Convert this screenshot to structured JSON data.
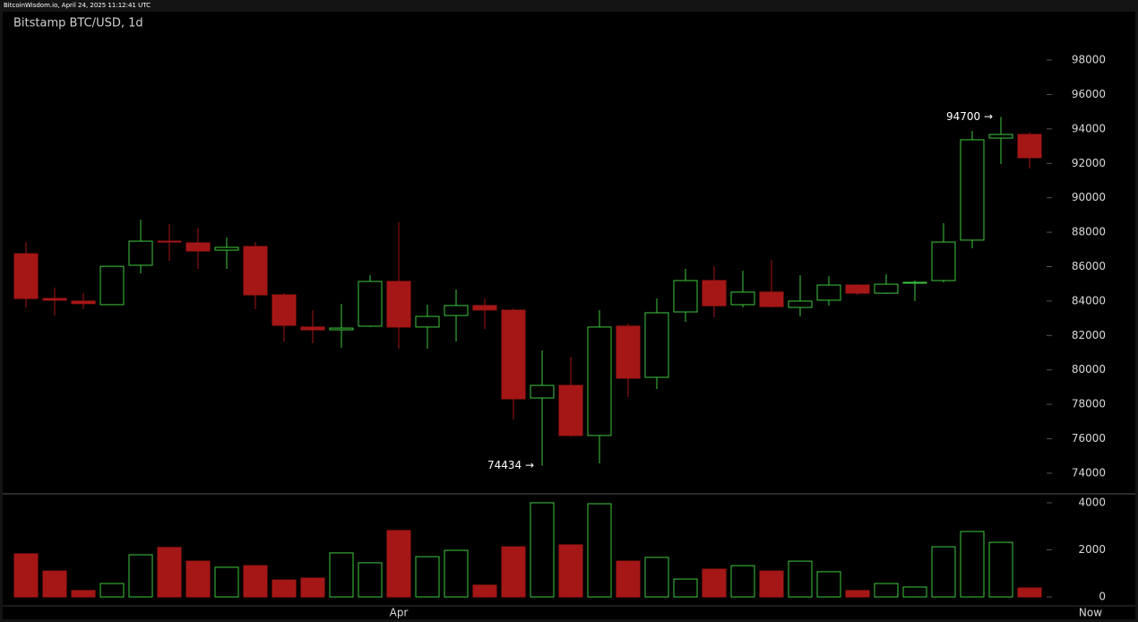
{
  "chart_data": {
    "type": "candlestick",
    "source": "BitcoinWisdom.io, April 24, 2025 11:12:41 UTC",
    "title": "Bitstamp BTC/USD, 1d",
    "categories": [
      null,
      null,
      null,
      null,
      null,
      null,
      null,
      null,
      null,
      null,
      null,
      null,
      null,
      "Apr",
      null,
      null,
      null,
      null,
      null,
      null,
      null,
      null,
      null,
      null,
      null,
      null,
      null,
      null,
      null,
      null,
      null,
      null,
      null,
      null,
      null,
      null
    ],
    "now_label": "Now",
    "open": [
      86750,
      84150,
      84000,
      83790,
      86080,
      87480,
      87380,
      86960,
      87170,
      84360,
      82490,
      82330,
      82540,
      85140,
      82490,
      83160,
      83740,
      83470,
      78370,
      79100,
      76190,
      82540,
      79570,
      83370,
      85190,
      83790,
      84520,
      83630,
      84050,
      84930,
      84460,
      85040,
      85190,
      87540,
      93470,
      93680
    ],
    "high": [
      87430,
      84780,
      84460,
      86050,
      88730,
      88470,
      88260,
      87690,
      87430,
      84460,
      83470,
      83840,
      85500,
      88580,
      83790,
      84670,
      84150,
      83580,
      81130,
      80770,
      83480,
      82690,
      84150,
      85870,
      86030,
      85760,
      86390,
      85500,
      85450,
      84980,
      85560,
      85190,
      88520,
      93890,
      94700,
      93790
    ],
    "low": [
      83630,
      83160,
      83530,
      83780,
      85610,
      86340,
      85870,
      85870,
      83530,
      81650,
      81550,
      81290,
      82490,
      81240,
      81240,
      81650,
      82380,
      77120,
      74434,
      76130,
      74570,
      78420,
      78890,
      82800,
      83060,
      83630,
      83630,
      83110,
      83740,
      84360,
      84410,
      84000,
      85090,
      87070,
      91960,
      91700
    ],
    "close": [
      84150,
      84050,
      83850,
      86020,
      87480,
      87430,
      86910,
      87120,
      84360,
      82590,
      82330,
      82430,
      85140,
      82490,
      83110,
      83740,
      83480,
      78320,
      79100,
      76190,
      82490,
      79520,
      83320,
      85190,
      83730,
      84520,
      83680,
      84000,
      84930,
      84460,
      84980,
      85090,
      87430,
      93370,
      93680,
      92330
    ],
    "volume": [
      1830,
      1100,
      270,
      570,
      1790,
      2100,
      1520,
      1260,
      1330,
      720,
      800,
      1870,
      1450,
      2820,
      1710,
      1980,
      500,
      2130,
      4000,
      2210,
      3960,
      1520,
      1680,
      760,
      1180,
      1330,
      1100,
      1520,
      1070,
      270,
      570,
      420,
      2130,
      2780,
      2320,
      380
    ],
    "up_color": "#3ec83e",
    "down_color": "#a51616",
    "ylim": [
      72800,
      100450
    ],
    "yticks": [
      74000,
      76000,
      78000,
      80000,
      82000,
      84000,
      86000,
      88000,
      90000,
      92000,
      94000,
      96000,
      98000
    ],
    "volume_ylim": [
      -380,
      4380
    ],
    "volume_yticks": [
      0,
      2000,
      4000
    ],
    "annotations": [
      {
        "label": "94700 →",
        "value": 94700,
        "index": 34
      },
      {
        "label": "74434 →",
        "value": 74434,
        "index": 18
      }
    ]
  }
}
